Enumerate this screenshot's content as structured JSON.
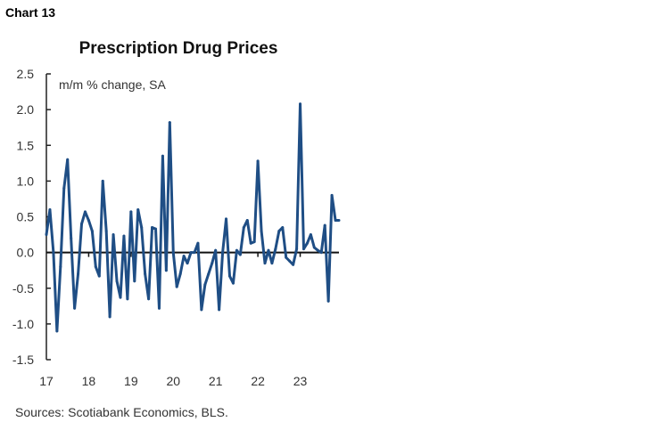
{
  "chart_label": "Chart 13",
  "sources": "Sources: Scotiabank Economics, BLS.",
  "chart_data": {
    "type": "line",
    "title": "Prescription Drug Prices",
    "ylabel": "m/m % change, SA",
    "xlabel": "",
    "ylim": [
      -1.5,
      2.5
    ],
    "yticks": [
      "2.5",
      "2.0",
      "1.5",
      "1.0",
      "0.5",
      "0.0",
      "-0.5",
      "-1.0",
      "-1.5"
    ],
    "xticks": [
      "17",
      "18",
      "19",
      "20",
      "21",
      "22",
      "23"
    ],
    "grid": false,
    "color": "#1f4e85",
    "x": [
      "2017-01",
      "2017-02",
      "2017-03",
      "2017-04",
      "2017-05",
      "2017-06",
      "2017-07",
      "2017-08",
      "2017-09",
      "2017-10",
      "2017-11",
      "2017-12",
      "2018-01",
      "2018-02",
      "2018-03",
      "2018-04",
      "2018-05",
      "2018-06",
      "2018-07",
      "2018-08",
      "2018-09",
      "2018-10",
      "2018-11",
      "2018-12",
      "2019-01",
      "2019-02",
      "2019-03",
      "2019-04",
      "2019-05",
      "2019-06",
      "2019-07",
      "2019-08",
      "2019-09",
      "2019-10",
      "2019-11",
      "2019-12",
      "2020-01",
      "2020-02",
      "2020-03",
      "2020-04",
      "2020-05",
      "2020-06",
      "2020-07",
      "2020-08",
      "2020-09",
      "2020-10",
      "2020-11",
      "2020-12",
      "2021-01",
      "2021-02",
      "2021-03",
      "2021-04",
      "2021-05",
      "2021-06",
      "2021-07",
      "2021-08",
      "2021-09",
      "2021-10",
      "2021-11",
      "2021-12",
      "2022-01",
      "2022-02",
      "2022-03",
      "2022-04",
      "2022-05",
      "2022-06",
      "2022-07",
      "2022-08",
      "2022-09",
      "2022-10",
      "2022-11",
      "2022-12",
      "2023-01",
      "2023-02",
      "2023-03",
      "2023-04",
      "2023-05",
      "2023-06",
      "2023-07",
      "2023-08",
      "2023-09",
      "2023-10",
      "2023-11",
      "2023-12"
    ],
    "values": [
      0.25,
      0.6,
      0.0,
      -1.1,
      -0.2,
      0.9,
      1.3,
      0.2,
      -0.78,
      -0.3,
      0.4,
      0.57,
      0.45,
      0.3,
      -0.2,
      -0.33,
      1.0,
      0.3,
      -0.9,
      0.25,
      -0.4,
      -0.63,
      0.23,
      -0.65,
      0.57,
      -0.4,
      0.6,
      0.35,
      -0.3,
      -0.65,
      0.35,
      0.33,
      -0.78,
      1.35,
      -0.25,
      1.82,
      0.0,
      -0.48,
      -0.3,
      -0.05,
      -0.15,
      0.0,
      0.0,
      0.13,
      -0.8,
      -0.45,
      -0.3,
      -0.15,
      0.03,
      -0.8,
      0.0,
      0.47,
      -0.33,
      -0.43,
      0.03,
      -0.03,
      0.35,
      0.45,
      0.13,
      0.15,
      1.28,
      0.3,
      -0.15,
      0.03,
      -0.15,
      0.05,
      0.3,
      0.35,
      -0.07,
      -0.12,
      -0.17,
      0.05,
      2.08,
      0.05,
      0.13,
      0.25,
      0.07,
      0.03,
      0.0,
      0.38,
      -0.68,
      0.8,
      0.45,
      0.45
    ]
  }
}
